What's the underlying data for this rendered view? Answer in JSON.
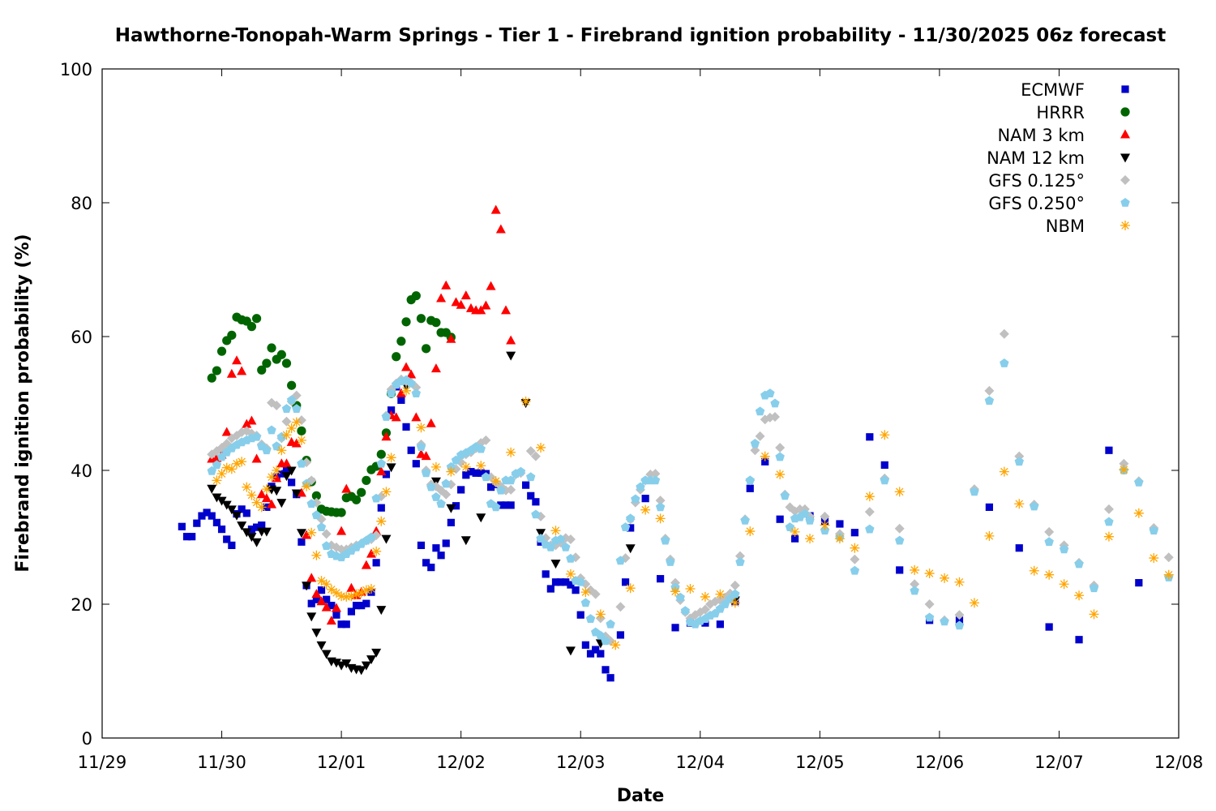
{
  "chart_data": {
    "type": "scatter",
    "title": "Hawthorne-Tonopah-Warm Springs - Tier 1 - Firebrand ignition probability - 11/30/2025 06z forecast",
    "xlabel": "Date",
    "ylabel": "Firebrand ignition probability (%)",
    "x_unit": "hours since 11/29 00Z",
    "xlim": [
      0,
      216
    ],
    "ylim": [
      0,
      100
    ],
    "x_ticks": [
      "11/29",
      "11/30",
      "12/01",
      "12/02",
      "12/03",
      "12/04",
      "12/05",
      "12/06",
      "12/07",
      "12/08"
    ],
    "y_ticks": [
      0,
      20,
      40,
      60,
      80,
      100
    ],
    "grid": false,
    "legend_position": "top-right",
    "series": [
      {
        "name": "ECMWF",
        "color": "#0000cc",
        "marker": "square",
        "segments": [
          {
            "start": 16,
            "step": 1,
            "values": [
              31.6,
              30.1,
              30.1,
              32.1,
              33.2,
              33.7,
              33.2,
              32.2,
              31.2,
              29.7,
              28.8,
              33.5,
              34.2,
              33.6,
              31.2,
              31.5,
              31.8,
              34.5,
              37.6,
              39.0,
              39.5,
              40.0,
              38.2,
              36.4,
              29.3,
              22.8,
              20.1,
              20.7,
              22.1,
              20.7,
              19.8,
              18.4,
              17.0,
              17.0,
              18.9,
              19.8,
              19.8,
              20.1,
              21.8,
              26.2,
              34.4,
              39.4,
              49.0,
              52.5,
              50.5,
              46.5,
              43.0,
              41.0,
              28.8,
              26.2,
              25.5,
              28.4,
              27.3,
              29.1,
              32.2,
              34.7,
              37.1,
              39.3,
              39.8,
              39.6,
              39.6,
              39.5,
              37.5,
              37.9,
              34.8,
              34.8,
              34.8
            ]
          },
          {
            "start": 85,
            "step": 1,
            "values": [
              37.8,
              36.2,
              35.3,
              29.3,
              24.5,
              22.3,
              23.3,
              23.3,
              23.3,
              22.9,
              22.1,
              18.4,
              13.9,
              12.6,
              13.2,
              12.6,
              10.2,
              9.0
            ]
          },
          {
            "start": 104,
            "step": 1,
            "values": [
              15.4,
              23.3,
              31.4
            ]
          },
          {
            "start": 109,
            "step": 3,
            "values": [
              35.8,
              23.8,
              16.5,
              17.2,
              17.2,
              17.0,
              20.4,
              37.3,
              41.3,
              32.7,
              29.8,
              33.2,
              32.4,
              32.0,
              30.7,
              45.0,
              40.8,
              25.1
            ]
          },
          {
            "start": 166,
            "step": 6,
            "values": [
              17.6,
              17.6,
              34.5,
              28.4,
              16.6,
              14.7,
              43.0,
              23.2
            ]
          }
        ]
      },
      {
        "name": "HRRR",
        "color": "#006400",
        "marker": "circle",
        "segments": [
          {
            "start": 22,
            "step": 1,
            "values": [
              53.8,
              54.9,
              57.8,
              59.4,
              60.2,
              62.9,
              62.5,
              62.3,
              61.5,
              62.7,
              55.0,
              56.0,
              58.3,
              56.6,
              57.3,
              56.0,
              52.7,
              49.7,
              45.9,
              41.5,
              38.3,
              36.2,
              34.2,
              33.9,
              33.8,
              33.7,
              33.7,
              35.9,
              36.1,
              35.6,
              36.7,
              38.5,
              40.1,
              40.6,
              42.4,
              45.6,
              51.5,
              57.0,
              59.3,
              62.2,
              65.5,
              66.1,
              62.7,
              58.2,
              62.4,
              62.1,
              60.6,
              60.6,
              59.9
            ]
          }
        ]
      },
      {
        "name": "NAM 3 km",
        "color": "#ff0000",
        "marker": "triangle-up",
        "segments": [
          {
            "start": 22,
            "step": 1,
            "values": [
              41.7,
              41.8,
              42.3,
              45.7,
              54.4,
              56.4,
              54.8,
              46.9,
              47.4,
              41.7,
              36.4,
              35.8,
              34.9,
              38.8,
              41.0,
              41.0,
              44.2,
              44.0,
              36.6,
              30.3,
              23.9,
              21.5,
              20.4,
              19.5,
              17.5,
              19.4,
              30.9,
              37.2,
              22.4,
              21.3,
              21.8,
              25.8,
              27.5,
              30.9,
              39.8,
              45.0,
              48.2,
              47.9,
              51.5,
              55.4,
              54.3,
              47.9,
              42.4,
              42.1,
              47.0,
              55.2,
              65.7,
              67.6,
              59.6,
              65.1,
              64.7,
              66.1,
              64.2,
              63.9,
              63.9,
              64.6,
              67.5,
              78.9,
              76.0,
              63.9,
              59.4
            ]
          }
        ]
      },
      {
        "name": "NAM 12 km",
        "color": "#000000",
        "marker": "triangle-down",
        "segments": [
          {
            "start": 22,
            "step": 1,
            "values": [
              37.3,
              36.0,
              35.5,
              34.9,
              34.2,
              33.3,
              31.8,
              30.8,
              30.1,
              29.3,
              30.9,
              30.9,
              37.2,
              37.0,
              35.2,
              39.2,
              40.0,
              36.6,
              30.7,
              22.8,
              18.2,
              15.8,
              13.9,
              12.6,
              11.5,
              11.3,
              10.9,
              11.2,
              10.5,
              10.3,
              10.2,
              10.9,
              11.8,
              12.8,
              19.2,
              29.8,
              40.5
            ]
          },
          {
            "points": [
              [
                61,
                52.7
              ],
              [
                67,
                38.4
              ],
              [
                70,
                34.4
              ],
              [
                73,
                29.6
              ],
              [
                76,
                33.0
              ],
              [
                82,
                57.2
              ],
              [
                85,
                50.1
              ],
              [
                88,
                30.7
              ],
              [
                91,
                26.1
              ],
              [
                94,
                13.1
              ],
              [
                100,
                14.2
              ],
              [
                106,
                28.4
              ],
              [
                127,
                20.6
              ]
            ]
          }
        ]
      },
      {
        "name": "GFS 0.125°",
        "color": "#c0c0c0",
        "marker": "diamond",
        "segments": [
          {
            "start": 22,
            "step": 1,
            "values": [
              42.4,
              42.9,
              43.4,
              44.0,
              44.8,
              45.2,
              45.7,
              45.9,
              45.5,
              45.2,
              43.9,
              43.3,
              50.1,
              49.7,
              44.8,
              47.3,
              50.3,
              51.2,
              47.5,
              41.2,
              38.5,
              35.2,
              32.7,
              30.5,
              28.8,
              28.5,
              28.2,
              28.2,
              28.5,
              28.8,
              29.1,
              29.5,
              29.7,
              30.3,
              36.1,
              48.2,
              52.1,
              53.0,
              53.6,
              53.3,
              53.1,
              52.4,
              43.9,
              40.0,
              37.9,
              37.6,
              37.0,
              36.4,
              37.9,
              40.2,
              41.2,
              42.4,
              42.7,
              43.3,
              44.1,
              44.5,
              39.0,
              38.2,
              37.6,
              37.0,
              37.1,
              39.4,
              39.6
            ]
          },
          {
            "start": 86,
            "step": 1,
            "values": [
              42.9,
              42.1,
              33.1,
              29.9,
              28.8,
              28.8,
              29.2,
              29.9,
              29.7,
              27.0,
              23.9,
              23.0,
              22.1,
              21.5,
              17.9,
              15.2,
              14.5
            ]
          },
          {
            "start": 104,
            "step": 1,
            "values": [
              19.6,
              26.9,
              32.7,
              35.2,
              37.1,
              38.5,
              39.4,
              39.5,
              35.5,
              29.8,
              26.7,
              23.2,
              20.6,
              18.8,
              17.9,
              18.4,
              18.8,
              19.2,
              20.0,
              20.4,
              20.6,
              21.0,
              21.6,
              22.8,
              27.2,
              32.7,
              38.5,
              43.0,
              45.1,
              47.6,
              47.9,
              48.0,
              43.4,
              36.4,
              34.5,
              33.9,
              34.2,
              34.2,
              33.1
            ]
          },
          {
            "start": 145,
            "step": 3,
            "values": [
              33.1,
              30.5,
              26.7,
              33.8,
              38.8,
              31.3,
              23.0,
              20.0,
              17.6,
              18.4,
              37.2,
              51.9,
              60.4,
              42.1,
              34.9,
              30.8,
              28.8,
              26.2,
              22.8,
              34.2,
              41.0,
              38.4,
              31.4,
              27.0
            ]
          }
        ]
      },
      {
        "name": "GFS 0.250°",
        "color": "#87ceeb",
        "marker": "pentagon",
        "segments": [
          {
            "start": 22,
            "step": 1,
            "values": [
              39.9,
              40.8,
              42.0,
              42.7,
              43.3,
              43.8,
              44.2,
              44.5,
              44.8,
              45.0,
              43.6,
              43.0,
              46.0,
              43.6,
              45.0,
              49.2,
              50.5,
              49.2,
              41.0,
              38.0,
              35.0,
              33.3,
              31.5,
              28.7,
              27.5,
              27.2,
              27.0,
              27.5,
              28.0,
              28.5,
              29.0,
              29.5,
              30.0,
              35.8,
              41.0,
              48.0,
              51.5,
              52.8,
              53.3,
              53.5,
              53.0,
              51.5,
              43.5,
              39.6,
              37.5,
              36.0,
              35.0,
              38.0,
              40.5,
              41.5,
              42.3,
              42.6,
              43.0,
              43.5,
              43.2,
              39.0,
              35.0,
              34.5,
              37.0,
              38.5,
              38.5,
              39.5,
              39.8
            ]
          },
          {
            "start": 86,
            "step": 1,
            "values": [
              39.0,
              33.4,
              29.8,
              28.9,
              28.5,
              29.5,
              29.7,
              28.5,
              26.8,
              23.5,
              23.3,
              20.2,
              17.8,
              15.8,
              15.3,
              14.5,
              17.0
            ]
          },
          {
            "start": 104,
            "step": 1,
            "values": [
              26.5,
              31.5,
              32.8,
              35.7,
              37.5,
              38.5,
              38.5,
              38.5,
              34.5,
              29.5,
              26.3,
              22.5,
              21.0,
              19.0,
              17.3,
              17.0,
              17.5,
              17.8,
              18.3,
              18.6,
              19.3,
              20.0,
              20.8,
              21.5,
              26.3,
              32.5,
              38.5,
              44.0,
              48.8,
              51.2,
              51.5,
              50.0,
              42.0,
              36.2,
              31.5,
              32.8,
              33.0,
              33.5,
              32.5
            ]
          },
          {
            "start": 145,
            "step": 3,
            "values": [
              31.0,
              30.0,
              25.0,
              31.2,
              38.5,
              29.5,
              22.0,
              18.0,
              17.4,
              16.8,
              36.8,
              50.4,
              56.0,
              41.3,
              34.6,
              29.3,
              28.2,
              26.0,
              22.4,
              32.3,
              40.0,
              38.2,
              31.0,
              24.0
            ]
          }
        ]
      },
      {
        "name": "NBM",
        "color": "#ffa500",
        "marker": "star",
        "segments": [
          {
            "start": 23,
            "step": 1,
            "values": [
              38.5,
              39.5,
              40.4,
              40.2,
              41.0,
              41.3,
              37.5,
              36.3,
              35.2,
              34.5,
              37.2,
              39.0,
              40.0,
              43.0,
              45.3,
              46.3,
              47.2,
              44.5,
              37.6,
              30.7,
              27.3,
              23.5,
              23.0,
              22.2,
              21.7,
              21.2,
              21.1,
              21.2,
              21.5,
              21.7,
              22.1,
              22.3,
              27.9,
              32.4,
              36.8,
              41.9
            ]
          },
          {
            "start": 61,
            "step": 3,
            "values": [
              51.9,
              46.4,
              40.5,
              39.8,
              40.5,
              40.7,
              38.4,
              42.7,
              50.3,
              43.4,
              31.0,
              24.5,
              21.8,
              18.5,
              13.9,
              22.4,
              34.1,
              32.8,
              21.9,
              22.3,
              21.1,
              21.5,
              20.2,
              30.9,
              42.1,
              39.4,
              30.8,
              29.8,
              31.8,
              29.8,
              28.4,
              36.1,
              45.3,
              36.8,
              25.1,
              24.6,
              23.9,
              23.3,
              20.2,
              30.2,
              39.8,
              35.0,
              25.0,
              24.4,
              23.0,
              21.3,
              18.5,
              30.1,
              40.1,
              33.6,
              26.9,
              24.4
            ]
          }
        ]
      }
    ]
  }
}
